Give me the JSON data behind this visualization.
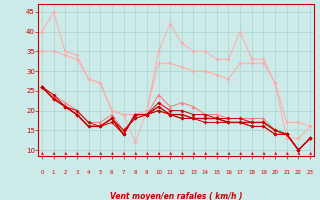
{
  "x": [
    0,
    1,
    2,
    3,
    4,
    5,
    6,
    7,
    8,
    9,
    10,
    11,
    12,
    13,
    14,
    15,
    16,
    17,
    18,
    19,
    20,
    21,
    22,
    23
  ],
  "line_light1": [
    40,
    45,
    35,
    34,
    28,
    27,
    20,
    19,
    12,
    20,
    35,
    42,
    37,
    35,
    35,
    33,
    33,
    40,
    33,
    33,
    27,
    13,
    13,
    16
  ],
  "line_light2": [
    35,
    35,
    34,
    33,
    28,
    27,
    20,
    19,
    19,
    20,
    32,
    32,
    31,
    30,
    30,
    29,
    28,
    32,
    32,
    32,
    27,
    17,
    17,
    16
  ],
  "line_med": [
    26,
    24,
    22,
    20,
    17,
    17,
    19,
    15,
    18,
    19,
    24,
    21,
    22,
    21,
    19,
    19,
    18,
    18,
    18,
    18,
    15,
    14,
    10,
    13
  ],
  "line_dark1": [
    26,
    24,
    21,
    20,
    17,
    16,
    18,
    15,
    18,
    19,
    22,
    20,
    20,
    19,
    19,
    18,
    18,
    18,
    17,
    17,
    15,
    14,
    10,
    13
  ],
  "line_dark2": [
    26,
    23,
    21,
    19,
    16,
    16,
    18,
    14,
    19,
    19,
    21,
    19,
    19,
    18,
    18,
    18,
    17,
    17,
    17,
    17,
    15,
    14,
    10,
    13
  ],
  "line_dark3": [
    26,
    23,
    21,
    19,
    16,
    16,
    18,
    14,
    19,
    19,
    20,
    19,
    18,
    18,
    18,
    18,
    17,
    17,
    16,
    16,
    14,
    14,
    10,
    13
  ],
  "line_dark4": [
    26,
    23,
    21,
    19,
    16,
    16,
    17,
    14,
    19,
    19,
    20,
    19,
    18,
    18,
    17,
    17,
    17,
    17,
    16,
    16,
    14,
    14,
    10,
    13
  ],
  "color_light": "#ffaaaa",
  "color_med": "#ff7777",
  "color_dark": "#cc0000",
  "bg_color": "#cceae8",
  "grid_color": "#aad4d0",
  "axis_color": "#cc0000",
  "xlabel": "Vent moyen/en rafales ( km/h )",
  "yticks": [
    10,
    15,
    20,
    25,
    30,
    35,
    40,
    45
  ],
  "ylim": [
    8.5,
    47
  ],
  "xlim": [
    -0.3,
    23.3
  ]
}
